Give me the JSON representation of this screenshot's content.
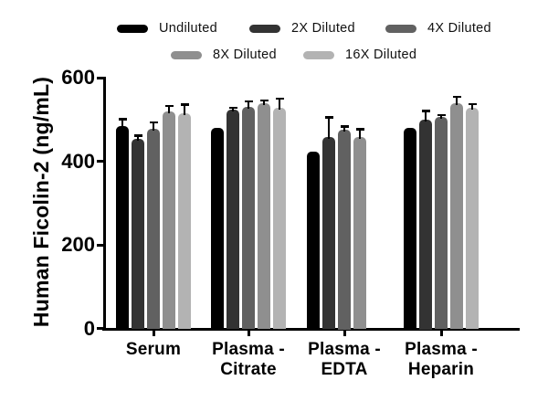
{
  "chart_data": {
    "type": "bar",
    "title": "",
    "ylabel": "Human Ficolin-2 (ng/mL)",
    "xlabel": "",
    "ylim": [
      0,
      600
    ],
    "yticks": [
      0,
      200,
      400,
      600
    ],
    "grid": false,
    "legend_position": "top",
    "error_bars": "upper only, black",
    "categories": [
      "Serum",
      "Plasma - Citrate",
      "Plasma - EDTA",
      "Plasma - Heparin"
    ],
    "category_lines": [
      [
        "Serum"
      ],
      [
        "Plasma -",
        "Citrate"
      ],
      [
        "Plasma -",
        "EDTA"
      ],
      [
        "Plasma -",
        "Heparin"
      ]
    ],
    "series": [
      {
        "name": "Undiluted",
        "color": "#000000",
        "values": [
          484,
          479,
          424,
          480
        ],
        "errors": [
          16,
          0,
          0,
          0
        ]
      },
      {
        "name": "2X Diluted",
        "color": "#333333",
        "values": [
          454,
          523,
          458,
          500
        ],
        "errors": [
          7,
          5,
          47,
          20
        ]
      },
      {
        "name": "4X Diluted",
        "color": "#616161",
        "values": [
          478,
          530,
          475,
          505
        ],
        "errors": [
          15,
          13,
          8,
          5
        ]
      },
      {
        "name": "8X Diluted",
        "color": "#8f8f8f",
        "values": [
          520,
          538,
          457,
          538
        ],
        "errors": [
          12,
          7,
          20,
          16
        ]
      },
      {
        "name": "16X Diluted",
        "color": "#b3b3b3",
        "values": [
          514,
          527,
          null,
          527
        ],
        "errors": [
          21,
          23,
          null,
          10
        ]
      }
    ]
  }
}
